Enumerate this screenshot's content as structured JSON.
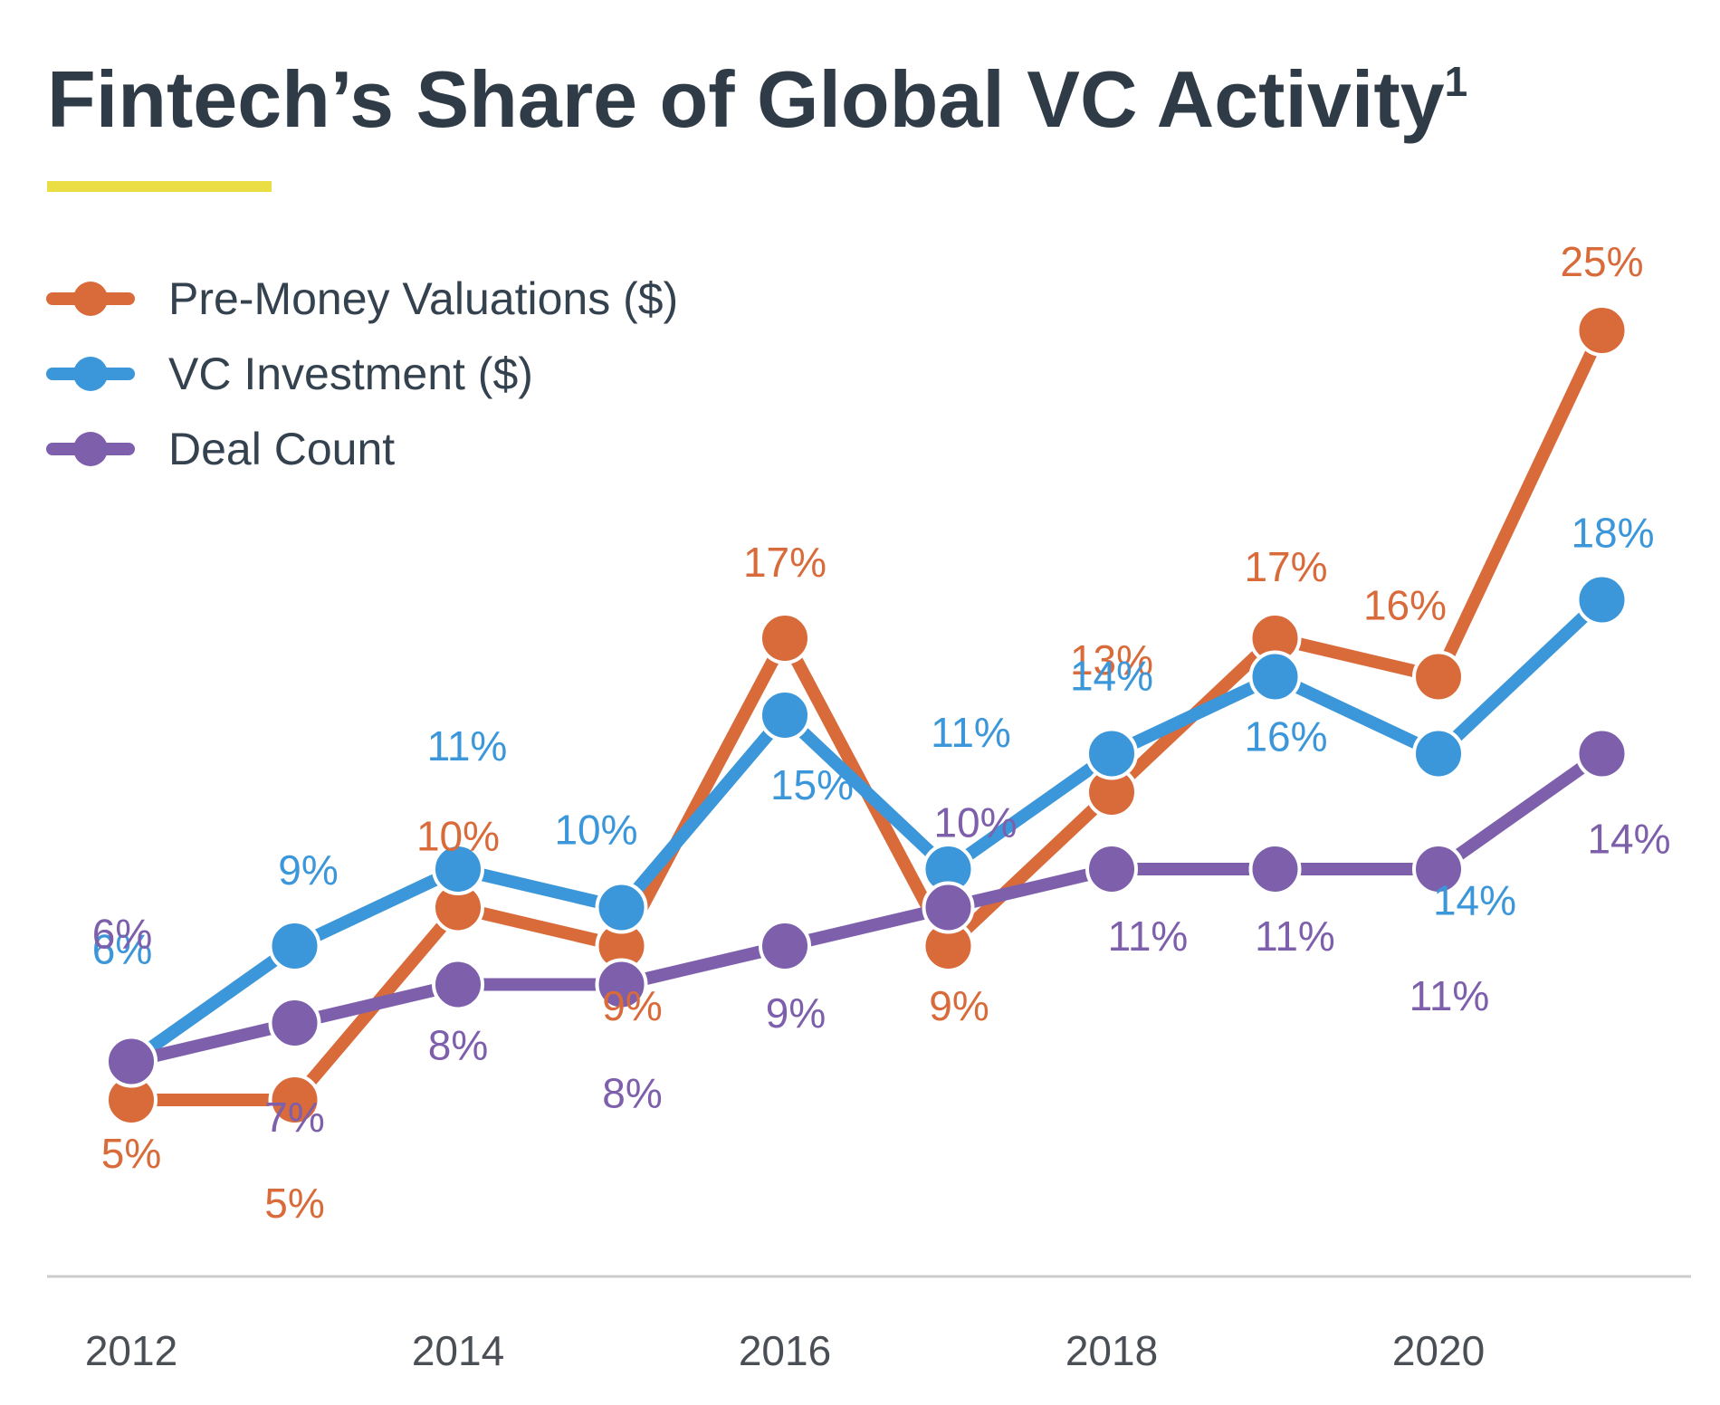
{
  "chart_data": {
    "type": "line",
    "title": "Fintech’s Share of Global VC Activity",
    "title_superscript": "1",
    "x": [
      2012,
      2013,
      2014,
      2015,
      2016,
      2017,
      2018,
      2019,
      2020,
      2021
    ],
    "tick_labels": [
      "2012",
      "2014",
      "2016",
      "2018",
      "2020"
    ],
    "series": [
      {
        "name": "Pre-Money Valuations ($)",
        "color": "#d96a3a",
        "values": [
          5,
          5,
          10,
          9,
          17,
          9,
          13,
          17,
          16,
          25
        ],
        "labels": [
          "5%",
          "5%",
          "10%",
          "9%",
          "17%",
          "9%",
          "13%",
          "17%",
          "16%",
          "25%"
        ]
      },
      {
        "name": "VC Investment ($)",
        "color": "#3b97d9",
        "values": [
          6,
          9,
          11,
          10,
          15,
          11,
          14,
          16,
          14,
          18
        ],
        "labels": [
          "6%",
          "9%",
          "11%",
          "10%",
          "15%",
          "11%",
          "14%",
          "16%",
          "14%",
          "18%"
        ]
      },
      {
        "name": "Deal Count",
        "color": "#7d5fab",
        "values": [
          6,
          7,
          8,
          8,
          9,
          10,
          11,
          11,
          11,
          14
        ],
        "labels": [
          "6%",
          "7%",
          "8%",
          "8%",
          "9%",
          "10%",
          "11%",
          "11%",
          "11%",
          "14%"
        ]
      }
    ],
    "legend_position": "top-left",
    "grid": false,
    "accent_color": "#ebde45",
    "axis_line_color": "#cccccc"
  }
}
